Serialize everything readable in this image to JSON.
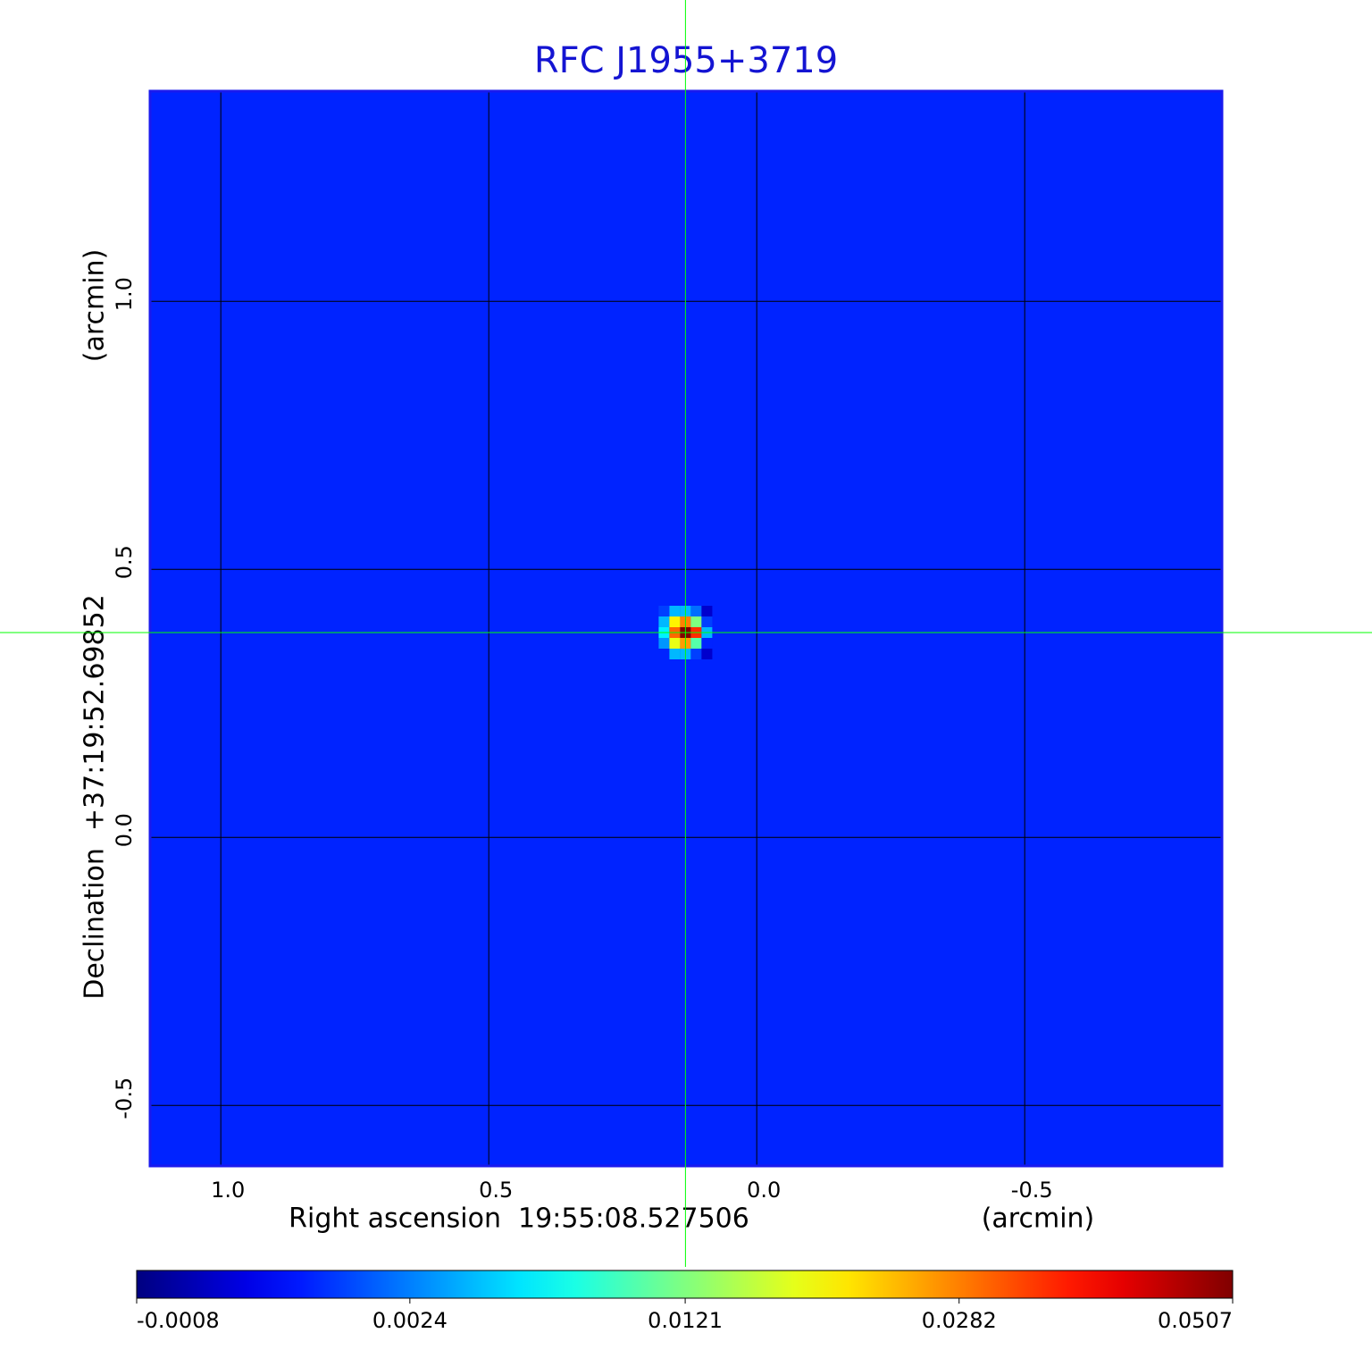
{
  "chart_data": {
    "type": "image",
    "title": "RFC J1955+3719",
    "xlabel": "Right ascension  19:55:08.527506",
    "xunit": "(arcmin)",
    "ylabel": "Declination  +37:19:52.69852",
    "yunit": "(arcmin)",
    "xlim": [
      1.132,
      -0.868
    ],
    "ylim": [
      -0.613,
      1.392
    ],
    "xticks": [
      {
        "value": 1,
        "label": "1.0"
      },
      {
        "value": 0.5,
        "label": "0.5"
      },
      {
        "value": 0,
        "label": "0.0"
      },
      -0.5
    ],
    "yticks": [
      {
        "value": 1,
        "label": "1.0"
      },
      {
        "value": 0.5,
        "label": "0.5"
      },
      {
        "value": 0,
        "label": "0.0"
      },
      -0.5
    ],
    "grid": true,
    "colormap": "jet",
    "colorbar_scale": "sqrt",
    "clim": [
      -0.0008,
      0.0507
    ],
    "colorbar_ticks": [
      -0.0008,
      0.0024,
      0.0121,
      0.0282,
      0.0507
    ],
    "image": {
      "background": 0.0005,
      "pixel_size": 0.02,
      "center": [
        0.133,
        0.382
      ],
      "values": [
        [
          0.001,
          0.004,
          0.004,
          0.002,
          -0.0005
        ],
        [
          0.004,
          0.02,
          0.028,
          0.012,
          0.001
        ],
        [
          0.006,
          0.03,
          0.0507,
          0.035,
          0.004
        ],
        [
          0.003,
          0.018,
          0.026,
          0.01,
          0.0005
        ],
        [
          0.0005,
          0.004,
          0.004,
          0.001,
          -0.0005
        ]
      ]
    },
    "crosshair": {
      "x": 0.133,
      "y": 0.382,
      "color": "#00ff00"
    }
  }
}
